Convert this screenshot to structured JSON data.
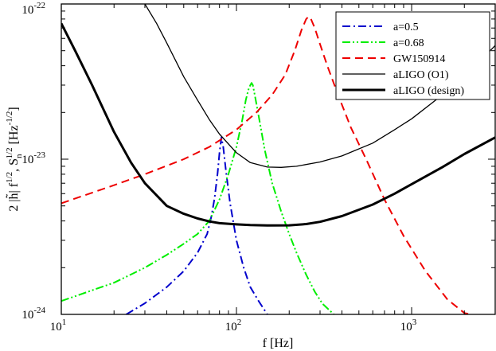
{
  "chart_data": {
    "type": "line",
    "title": "",
    "xlabel": "f [Hz]",
    "ylabel": "2 |h̃| f^1/2 ,  S_n^1/2  [Hz^-1/2]",
    "xscale": "log",
    "yscale": "log",
    "xlim": [
      10,
      3000
    ],
    "ylim": [
      1e-24,
      1e-22
    ],
    "grid": false,
    "legend_position": "top-right",
    "x_ticks": [
      {
        "value": 10,
        "base": "10",
        "exp": "1"
      },
      {
        "value": 100,
        "base": "10",
        "exp": "2"
      },
      {
        "value": 1000,
        "base": "10",
        "exp": "3"
      }
    ],
    "y_ticks": [
      {
        "value": 1e-24,
        "base": "10",
        "exp": "-24"
      },
      {
        "value": 1e-23,
        "base": "10",
        "exp": "-23"
      },
      {
        "value": 1e-22,
        "base": "10",
        "exp": "-22"
      }
    ],
    "series": [
      {
        "name": "a=0.5",
        "color": "#0000cc",
        "style": "dashdot",
        "width": 2,
        "x": [
          23.5,
          30,
          40,
          50,
          60,
          68,
          72,
          75,
          78,
          80,
          82,
          84,
          87,
          92,
          100,
          110,
          120,
          135,
          150
        ],
        "y": [
          1e-24,
          1.18e-24,
          1.5e-24,
          1.9e-24,
          2.5e-24,
          3.3e-24,
          4.3e-24,
          5.6e-24,
          8.1e-24,
          1.1e-23,
          1.38e-23,
          1.2e-23,
          8.5e-24,
          5.2e-24,
          3e-24,
          2e-24,
          1.5e-24,
          1.2e-24,
          1e-24
        ]
      },
      {
        "name": "a=0.68",
        "color": "#00ee00",
        "style": "dashdotdot",
        "width": 2,
        "x": [
          10,
          20,
          30,
          40,
          50,
          60,
          70,
          80,
          90,
          100,
          108,
          113,
          117,
          120,
          122,
          124,
          128,
          135,
          145,
          160,
          180,
          200,
          220,
          250,
          280,
          310,
          360
        ],
        "y": [
          1.22e-24,
          1.6e-24,
          2e-24,
          2.42e-24,
          2.85e-24,
          3.3e-24,
          4e-24,
          5.5e-24,
          8e-24,
          1.2e-23,
          1.8e-23,
          2.4e-23,
          2.8e-23,
          3e-23,
          3.1e-23,
          3e-23,
          2.5e-23,
          1.8e-23,
          1.15e-23,
          7e-24,
          4.6e-24,
          3.3e-24,
          2.5e-24,
          1.8e-24,
          1.4e-24,
          1.17e-24,
          1e-24
        ]
      },
      {
        "name": "GW150914",
        "color": "#ee0000",
        "style": "dashed",
        "width": 2,
        "x": [
          10,
          20,
          30,
          50,
          70,
          100,
          130,
          160,
          190,
          215,
          235,
          250,
          258,
          265,
          280,
          300,
          330,
          380,
          450,
          550,
          700,
          900,
          1200,
          1600,
          2000,
          2200
        ],
        "y": [
          5.2e-24,
          6.8e-24,
          8e-24,
          1e-23,
          1.2e-23,
          1.55e-23,
          2e-23,
          2.6e-23,
          3.5e-23,
          5e-23,
          6.8e-23,
          8e-23,
          8.3e-23,
          8.1e-23,
          7e-23,
          5.5e-23,
          4e-23,
          2.6e-23,
          1.6e-23,
          1e-23,
          5.5e-24,
          3.2e-24,
          1.9e-24,
          1.25e-24,
          1.02e-24,
          1e-24
        ]
      },
      {
        "name": "aLIGO (O1)",
        "color": "#000000",
        "style": "solid",
        "width": 1.3,
        "x": [
          30,
          35,
          40,
          50,
          60,
          70,
          80,
          100,
          120,
          150,
          180,
          220,
          300,
          400,
          600,
          800,
          1000,
          1500,
          2000,
          3000
        ],
        "y": [
          1e-22,
          7.5e-23,
          5.6e-23,
          3.4e-23,
          2.4e-23,
          1.8e-23,
          1.45e-23,
          1.1e-23,
          9.5e-24,
          8.9e-24,
          8.85e-24,
          9e-24,
          9.6e-24,
          1.05e-23,
          1.27e-23,
          1.55e-23,
          1.82e-23,
          2.6e-23,
          3.4e-23,
          5.4e-23
        ]
      },
      {
        "name": "aLIGO (design)",
        "color": "#000000",
        "style": "solid",
        "width": 3,
        "x": [
          10,
          12,
          15,
          20,
          25,
          30,
          40,
          50,
          60,
          70,
          80,
          100,
          120,
          150,
          200,
          250,
          300,
          400,
          600,
          800,
          1000,
          1500,
          2000,
          3000
        ],
        "y": [
          7.5e-23,
          5e-23,
          3e-23,
          1.5e-23,
          9.5e-24,
          7e-24,
          5e-24,
          4.45e-24,
          4.15e-24,
          3.97e-24,
          3.87e-24,
          3.8e-24,
          3.76e-24,
          3.74e-24,
          3.75e-24,
          3.82e-24,
          3.95e-24,
          4.3e-24,
          5.1e-24,
          6e-24,
          6.9e-24,
          8.9e-24,
          1.08e-23,
          1.38e-23
        ]
      }
    ]
  }
}
